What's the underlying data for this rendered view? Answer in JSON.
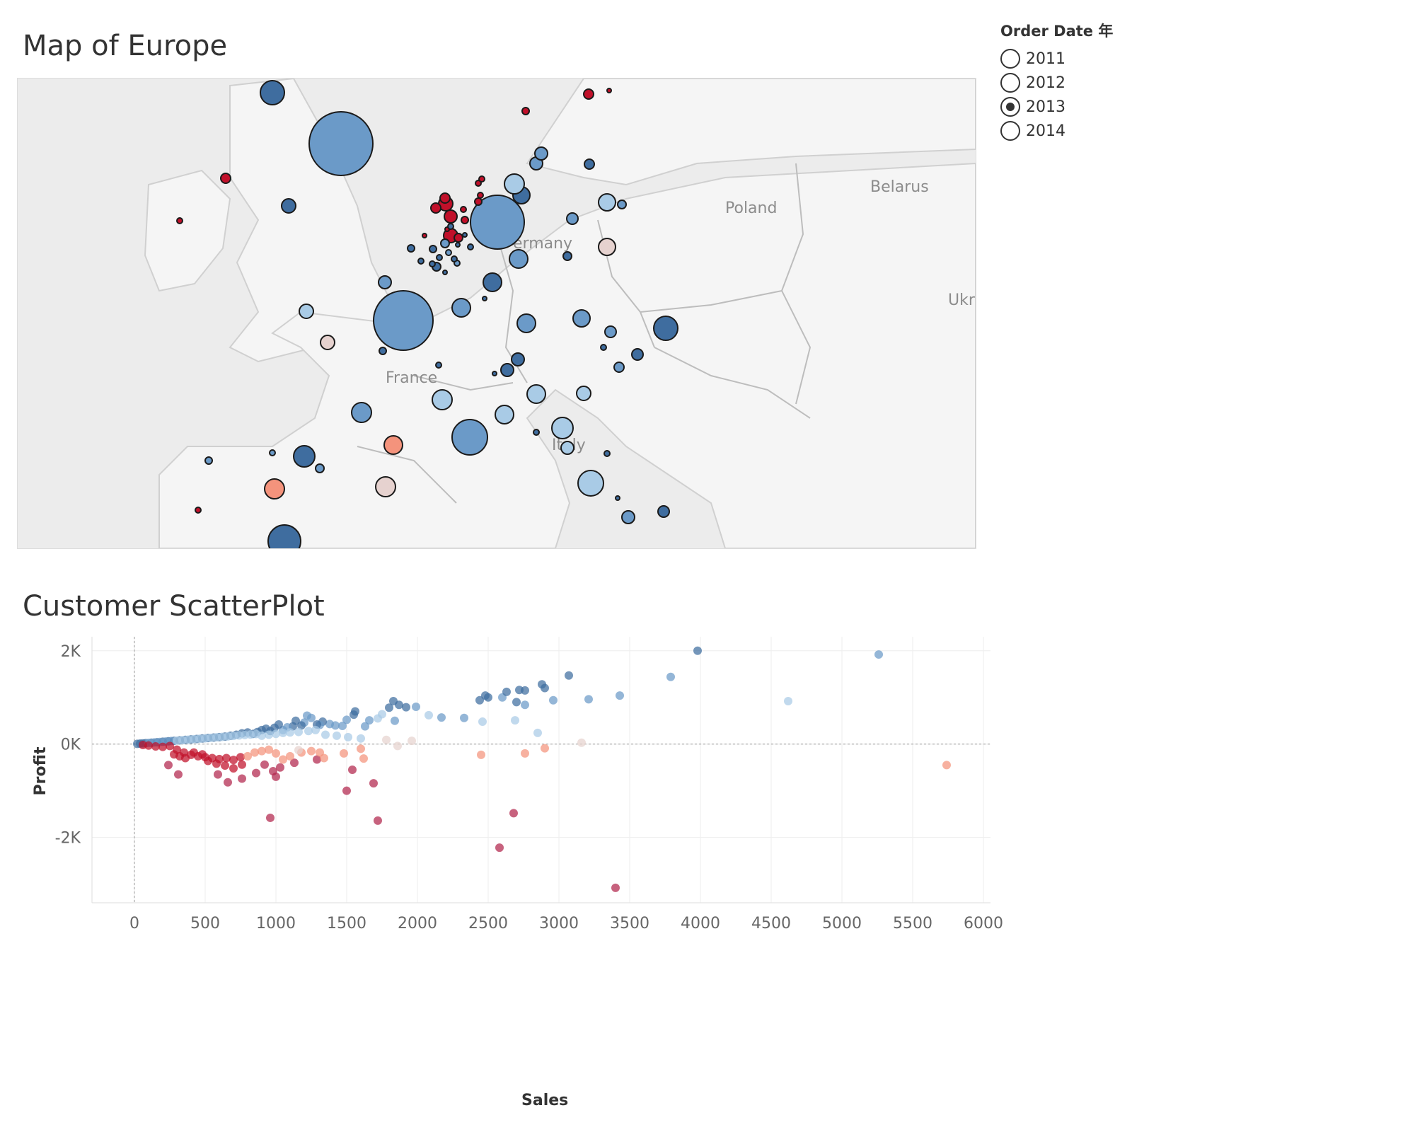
{
  "map": {
    "title": "Map of Europe",
    "country_labels": [
      "Poland",
      "Belarus",
      "ermany",
      "France",
      "Ukrai",
      "Italy",
      "n"
    ]
  },
  "legend": {
    "title": "Order Date 年",
    "options": [
      {
        "label": "2011",
        "selected": false
      },
      {
        "label": "2012",
        "selected": false
      },
      {
        "label": "2013",
        "selected": true
      },
      {
        "label": "2014",
        "selected": false
      }
    ]
  },
  "scatter": {
    "title": "Customer ScatterPlot"
  },
  "colors": {
    "dark_blue": "#3f6d9f",
    "blue": "#6b9ac8",
    "light_blue": "#a9cbe6",
    "pale": "#e6d2cf",
    "salmon": "#f4937c",
    "red": "#c1102a",
    "crimson": "#b2264c",
    "map_land": "#f5f5f5",
    "map_water": "#ececec"
  },
  "chart_data": {
    "type": "scatter",
    "title": "Customer ScatterPlot",
    "xlabel": "Sales",
    "ylabel": "Profit",
    "xlim": [
      -300,
      6050
    ],
    "ylim": [
      -3400,
      2300
    ],
    "x_ticks": [
      0,
      500,
      1000,
      1500,
      2000,
      2500,
      3000,
      3500,
      4000,
      4500,
      5000,
      5500,
      6000
    ],
    "x_tick_labels": [
      "0",
      "500",
      "1000",
      "1500",
      "2000",
      "2500",
      "3000",
      "3500",
      "4000",
      "4500",
      "5000",
      "5500",
      "6000"
    ],
    "y_ticks": [
      2000,
      0,
      -2000
    ],
    "y_tick_labels": [
      "2K",
      "0K",
      "-2K"
    ],
    "grid": true,
    "points": [
      [
        3980,
        2000,
        "dark_blue"
      ],
      [
        5260,
        1920,
        "blue"
      ],
      [
        3070,
        1470,
        "dark_blue"
      ],
      [
        3790,
        1440,
        "blue"
      ],
      [
        4620,
        920,
        "light_blue"
      ],
      [
        3430,
        1040,
        "blue"
      ],
      [
        3210,
        960,
        "blue"
      ],
      [
        2960,
        940,
        "blue"
      ],
      [
        2900,
        1200,
        "dark_blue"
      ],
      [
        2880,
        1280,
        "dark_blue"
      ],
      [
        2760,
        1150,
        "dark_blue"
      ],
      [
        2720,
        1160,
        "dark_blue"
      ],
      [
        2760,
        840,
        "blue"
      ],
      [
        2700,
        900,
        "dark_blue"
      ],
      [
        2600,
        1000,
        "blue"
      ],
      [
        2630,
        1120,
        "dark_blue"
      ],
      [
        2500,
        1000,
        "dark_blue"
      ],
      [
        2440,
        940,
        "dark_blue"
      ],
      [
        2480,
        1040,
        "dark_blue"
      ],
      [
        2330,
        560,
        "blue"
      ],
      [
        2170,
        570,
        "blue"
      ],
      [
        2080,
        620,
        "light_blue"
      ],
      [
        2460,
        480,
        "light_blue"
      ],
      [
        2690,
        510,
        "light_blue"
      ],
      [
        2850,
        240,
        "light_blue"
      ],
      [
        3160,
        30,
        "pale"
      ],
      [
        1990,
        800,
        "blue"
      ],
      [
        1920,
        790,
        "dark_blue"
      ],
      [
        1870,
        840,
        "dark_blue"
      ],
      [
        1830,
        920,
        "dark_blue"
      ],
      [
        1800,
        780,
        "dark_blue"
      ],
      [
        1840,
        500,
        "blue"
      ],
      [
        1750,
        640,
        "light_blue"
      ],
      [
        1720,
        550,
        "light_blue"
      ],
      [
        1660,
        510,
        "blue"
      ],
      [
        1630,
        380,
        "blue"
      ],
      [
        1560,
        700,
        "dark_blue"
      ],
      [
        1550,
        630,
        "dark_blue"
      ],
      [
        1500,
        520,
        "blue"
      ],
      [
        1470,
        390,
        "blue"
      ],
      [
        1420,
        400,
        "blue"
      ],
      [
        1380,
        430,
        "blue"
      ],
      [
        1330,
        480,
        "dark_blue"
      ],
      [
        1310,
        410,
        "blue"
      ],
      [
        1290,
        420,
        "dark_blue"
      ],
      [
        1250,
        560,
        "blue"
      ],
      [
        1220,
        610,
        "blue"
      ],
      [
        1200,
        460,
        "blue"
      ],
      [
        1180,
        400,
        "dark_blue"
      ],
      [
        1140,
        500,
        "dark_blue"
      ],
      [
        1120,
        380,
        "dark_blue"
      ],
      [
        1080,
        360,
        "blue"
      ],
      [
        1050,
        300,
        "blue"
      ],
      [
        1020,
        420,
        "dark_blue"
      ],
      [
        990,
        350,
        "dark_blue"
      ],
      [
        960,
        280,
        "dark_blue"
      ],
      [
        930,
        330,
        "dark_blue"
      ],
      [
        900,
        300,
        "dark_blue"
      ],
      [
        870,
        260,
        "dark_blue"
      ],
      [
        840,
        220,
        "dark_blue"
      ],
      [
        800,
        250,
        "dark_blue"
      ],
      [
        760,
        230,
        "dark_blue"
      ],
      [
        720,
        200,
        "dark_blue"
      ],
      [
        680,
        180,
        "dark_blue"
      ],
      [
        640,
        160,
        "dark_blue"
      ],
      [
        600,
        150,
        "dark_blue"
      ],
      [
        560,
        140,
        "dark_blue"
      ],
      [
        520,
        130,
        "dark_blue"
      ],
      [
        480,
        120,
        "dark_blue"
      ],
      [
        440,
        110,
        "dark_blue"
      ],
      [
        400,
        100,
        "dark_blue"
      ],
      [
        360,
        90,
        "dark_blue"
      ],
      [
        320,
        80,
        "dark_blue"
      ],
      [
        280,
        70,
        "dark_blue"
      ],
      [
        240,
        60,
        "dark_blue"
      ],
      [
        200,
        50,
        "dark_blue"
      ],
      [
        160,
        40,
        "dark_blue"
      ],
      [
        120,
        30,
        "dark_blue"
      ],
      [
        80,
        20,
        "dark_blue"
      ],
      [
        40,
        10,
        "dark_blue"
      ],
      [
        20,
        5,
        "dark_blue"
      ],
      [
        60,
        15,
        "dark_blue"
      ],
      [
        100,
        25,
        "blue"
      ],
      [
        140,
        35,
        "blue"
      ],
      [
        180,
        45,
        "blue"
      ],
      [
        220,
        55,
        "blue"
      ],
      [
        260,
        65,
        "blue"
      ],
      [
        300,
        75,
        "light_blue"
      ],
      [
        340,
        85,
        "light_blue"
      ],
      [
        380,
        95,
        "light_blue"
      ],
      [
        420,
        105,
        "light_blue"
      ],
      [
        460,
        115,
        "light_blue"
      ],
      [
        500,
        125,
        "light_blue"
      ],
      [
        540,
        135,
        "light_blue"
      ],
      [
        580,
        145,
        "light_blue"
      ],
      [
        620,
        155,
        "light_blue"
      ],
      [
        660,
        165,
        "light_blue"
      ],
      [
        700,
        175,
        "light_blue"
      ],
      [
        740,
        185,
        "light_blue"
      ],
      [
        780,
        195,
        "light_blue"
      ],
      [
        820,
        205,
        "light_blue"
      ],
      [
        860,
        215,
        "light_blue"
      ],
      [
        900,
        180,
        "light_blue"
      ],
      [
        950,
        200,
        "light_blue"
      ],
      [
        1000,
        220,
        "light_blue"
      ],
      [
        1050,
        240,
        "light_blue"
      ],
      [
        1100,
        250,
        "light_blue"
      ],
      [
        1160,
        260,
        "light_blue"
      ],
      [
        1230,
        280,
        "light_blue"
      ],
      [
        1280,
        300,
        "light_blue"
      ],
      [
        1350,
        200,
        "light_blue"
      ],
      [
        1430,
        180,
        "light_blue"
      ],
      [
        1510,
        150,
        "light_blue"
      ],
      [
        1600,
        120,
        "light_blue"
      ],
      [
        1780,
        90,
        "pale"
      ],
      [
        1960,
        70,
        "pale"
      ],
      [
        250,
        -40,
        "red"
      ],
      [
        200,
        -60,
        "red"
      ],
      [
        150,
        -50,
        "red"
      ],
      [
        100,
        -30,
        "red"
      ],
      [
        60,
        -20,
        "red"
      ],
      [
        300,
        -120,
        "red"
      ],
      [
        350,
        -180,
        "red"
      ],
      [
        400,
        -230,
        "red"
      ],
      [
        450,
        -260,
        "red"
      ],
      [
        500,
        -280,
        "red"
      ],
      [
        550,
        -300,
        "red"
      ],
      [
        600,
        -320,
        "red"
      ],
      [
        650,
        -300,
        "red"
      ],
      [
        700,
        -340,
        "red"
      ],
      [
        750,
        -280,
        "red"
      ],
      [
        280,
        -220,
        "red"
      ],
      [
        320,
        -260,
        "red"
      ],
      [
        360,
        -300,
        "red"
      ],
      [
        420,
        -180,
        "red"
      ],
      [
        480,
        -220,
        "red"
      ],
      [
        520,
        -360,
        "red"
      ],
      [
        580,
        -420,
        "red"
      ],
      [
        640,
        -460,
        "red"
      ],
      [
        700,
        -520,
        "red"
      ],
      [
        760,
        -440,
        "red"
      ],
      [
        240,
        -450,
        "crimson"
      ],
      [
        310,
        -650,
        "crimson"
      ],
      [
        590,
        -650,
        "crimson"
      ],
      [
        660,
        -820,
        "crimson"
      ],
      [
        760,
        -740,
        "crimson"
      ],
      [
        860,
        -620,
        "crimson"
      ],
      [
        980,
        -580,
        "crimson"
      ],
      [
        1000,
        -700,
        "crimson"
      ],
      [
        1030,
        -500,
        "crimson"
      ],
      [
        1130,
        -400,
        "crimson"
      ],
      [
        920,
        -440,
        "crimson"
      ],
      [
        1500,
        -1000,
        "crimson"
      ],
      [
        1690,
        -840,
        "crimson"
      ],
      [
        1540,
        -550,
        "crimson"
      ],
      [
        960,
        -1580,
        "crimson"
      ],
      [
        1720,
        -1640,
        "crimson"
      ],
      [
        2580,
        -2220,
        "crimson"
      ],
      [
        2680,
        -1480,
        "crimson"
      ],
      [
        3400,
        -3080,
        "crimson"
      ],
      [
        1290,
        -330,
        "crimson"
      ],
      [
        800,
        -260,
        "salmon"
      ],
      [
        850,
        -180,
        "salmon"
      ],
      [
        900,
        -150,
        "salmon"
      ],
      [
        950,
        -120,
        "salmon"
      ],
      [
        1000,
        -200,
        "salmon"
      ],
      [
        1050,
        -330,
        "salmon"
      ],
      [
        1100,
        -260,
        "salmon"
      ],
      [
        1180,
        -180,
        "salmon"
      ],
      [
        1250,
        -150,
        "salmon"
      ],
      [
        1310,
        -180,
        "salmon"
      ],
      [
        1340,
        -300,
        "salmon"
      ],
      [
        1480,
        -200,
        "salmon"
      ],
      [
        1600,
        -100,
        "salmon"
      ],
      [
        1620,
        -310,
        "salmon"
      ],
      [
        2450,
        -230,
        "salmon"
      ],
      [
        2760,
        -200,
        "salmon"
      ],
      [
        2900,
        -90,
        "salmon"
      ],
      [
        5740,
        -450,
        "salmon"
      ],
      [
        1160,
        -130,
        "pale"
      ],
      [
        1860,
        -40,
        "pale"
      ]
    ]
  }
}
